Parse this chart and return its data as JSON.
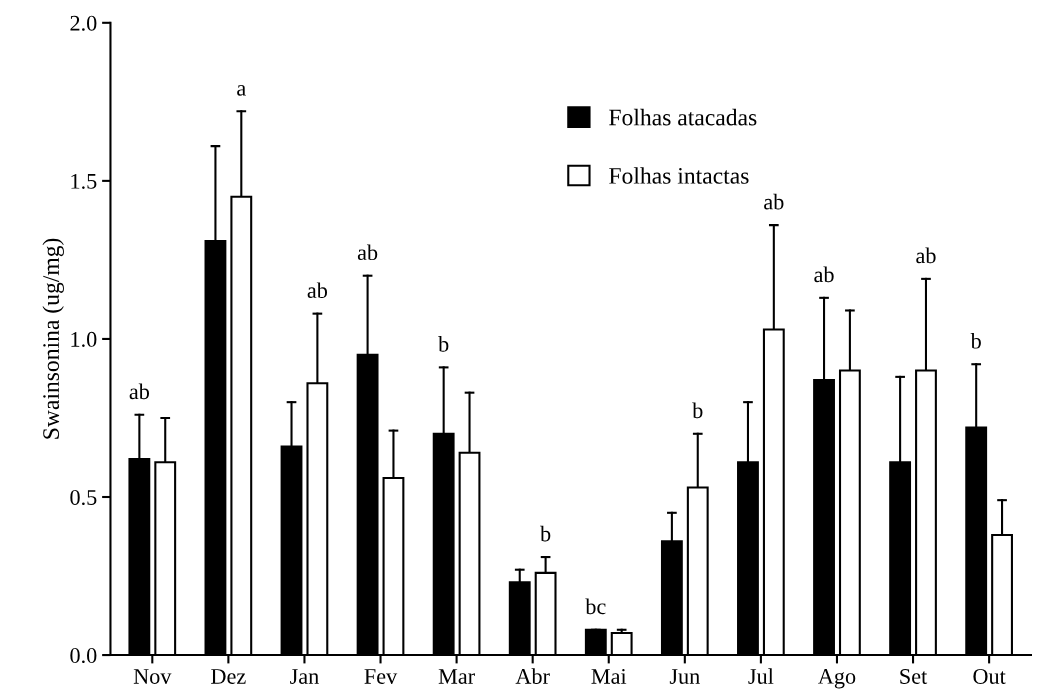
{
  "chart_data": {
    "type": "bar",
    "ylabel": "Swainsonina (ug/mg)",
    "categories": [
      "Nov",
      "Dez",
      "Jan",
      "Fev",
      "Mar",
      "Abr",
      "Mai",
      "Jun",
      "Jul",
      "Ago",
      "Set",
      "Out"
    ],
    "series": [
      {
        "name": "Folhas atacadas",
        "color": "#000000",
        "values": [
          0.62,
          1.31,
          0.66,
          0.95,
          0.7,
          0.23,
          0.08,
          0.36,
          0.61,
          0.87,
          0.61,
          0.72
        ],
        "errors": [
          [
            0.62,
            0.76
          ],
          [
            1.31,
            1.61
          ],
          [
            0.66,
            0.8
          ],
          [
            0.95,
            1.2
          ],
          [
            0.7,
            0.91
          ],
          [
            0.23,
            0.27
          ],
          [
            0.08,
            0.08
          ],
          [
            0.36,
            0.45
          ],
          [
            0.61,
            0.8
          ],
          [
            0.87,
            1.13
          ],
          [
            0.61,
            0.88
          ],
          [
            0.72,
            0.92
          ]
        ]
      },
      {
        "name": "Folhas intactas",
        "color": "#ffffff",
        "values": [
          0.61,
          1.45,
          0.86,
          0.56,
          0.64,
          0.26,
          0.07,
          0.53,
          1.03,
          0.9,
          0.9,
          0.38
        ],
        "errors": [
          [
            0.61,
            0.75
          ],
          [
            1.45,
            1.72
          ],
          [
            0.86,
            1.08
          ],
          [
            0.56,
            0.71
          ],
          [
            0.64,
            0.83
          ],
          [
            0.26,
            0.31
          ],
          [
            0.07,
            0.08
          ],
          [
            0.53,
            0.7
          ],
          [
            1.03,
            1.36
          ],
          [
            0.9,
            1.09
          ],
          [
            0.9,
            1.19
          ],
          [
            0.38,
            0.49
          ]
        ]
      }
    ],
    "ylim": [
      0,
      2.0
    ],
    "yticks": [
      {
        "value": 0,
        "label": "0.0"
      },
      {
        "value": 0.5,
        "label": "0.5"
      },
      {
        "value": 1.0,
        "label": "1.0"
      },
      {
        "value": 1.5,
        "label": "1.5"
      },
      {
        "value": 2.0,
        "label": "2.0"
      }
    ],
    "legend": "top",
    "annotations": [
      "ab",
      "a",
      "ab",
      "ab",
      "b",
      "b",
      "bc",
      "b",
      "ab",
      "ab",
      "ab",
      "b"
    ]
  }
}
